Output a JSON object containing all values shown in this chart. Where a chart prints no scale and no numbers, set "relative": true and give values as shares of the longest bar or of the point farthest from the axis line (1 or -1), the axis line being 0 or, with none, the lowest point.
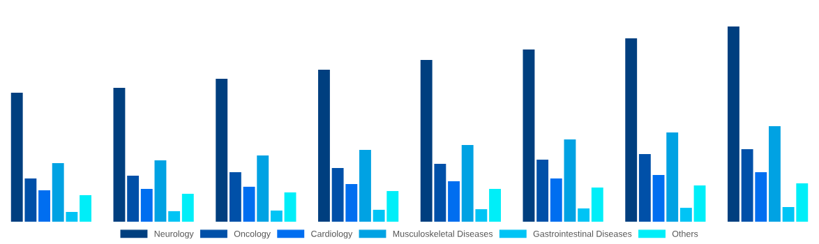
{
  "chart_data": {
    "type": "bar",
    "relative": true,
    "legend": "bottom",
    "grid": false,
    "categories": [
      null,
      null,
      null,
      null,
      null,
      null,
      null,
      null
    ],
    "series": [
      {
        "name": "Neurology",
        "color": "#003f7f",
        "values": [
          0.661,
          0.686,
          0.732,
          0.779,
          0.829,
          0.882,
          0.939,
          1
        ]
      },
      {
        "name": "Oncology",
        "color": "#0050a8",
        "values": [
          0.221,
          0.236,
          0.254,
          0.275,
          0.296,
          0.318,
          0.346,
          0.371
        ]
      },
      {
        "name": "Cardiology",
        "color": "#006ef0",
        "values": [
          0.161,
          0.168,
          0.179,
          0.193,
          0.207,
          0.221,
          0.239,
          0.254
        ]
      },
      {
        "name": "Musculoskeletal Diseases",
        "color": "#00a2e3",
        "values": [
          0.3,
          0.314,
          0.339,
          0.368,
          0.393,
          0.421,
          0.457,
          0.489
        ]
      },
      {
        "name": "Gastrointestinal Diseases",
        "color": "#00c4f5",
        "values": [
          0.05,
          0.054,
          0.057,
          0.061,
          0.064,
          0.068,
          0.071,
          0.075
        ]
      },
      {
        "name": "Others",
        "color": "#00eef8",
        "values": [
          0.136,
          0.143,
          0.15,
          0.157,
          0.168,
          0.175,
          0.186,
          0.196
        ]
      }
    ]
  }
}
